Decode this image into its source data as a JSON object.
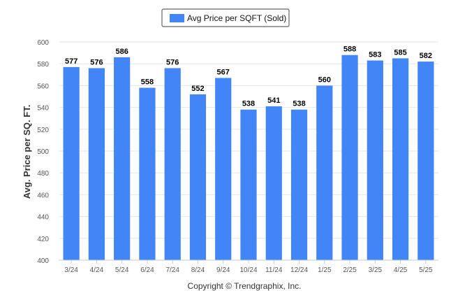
{
  "chart_data": {
    "type": "bar",
    "legend": {
      "label": "Avg Price per SQFT (Sold)",
      "placement": "top-center"
    },
    "categories": [
      "3/24",
      "4/24",
      "5/24",
      "6/24",
      "7/24",
      "8/24",
      "9/24",
      "10/24",
      "11/24",
      "12/24",
      "1/25",
      "2/25",
      "3/25",
      "4/25",
      "5/25"
    ],
    "series": [
      {
        "name": "Avg Price per SQFT (Sold)",
        "values": [
          577,
          576,
          586,
          558,
          576,
          552,
          567,
          538,
          541,
          538,
          560,
          588,
          583,
          585,
          582
        ]
      }
    ],
    "ylabel": "Avg. Price per SQ. FT.",
    "xlabel": "",
    "ylim": [
      400,
      600
    ],
    "yticks": [
      400,
      420,
      440,
      460,
      480,
      500,
      520,
      540,
      560,
      580,
      600
    ],
    "grid": true,
    "data_labels": true,
    "colors": {
      "bar": "#4285f4",
      "grid": "#e6e6e6",
      "axis_text": "#555555",
      "label_text": "#000000"
    }
  },
  "footer": {
    "copyright": "Copyright © Trendgraphix, Inc."
  }
}
